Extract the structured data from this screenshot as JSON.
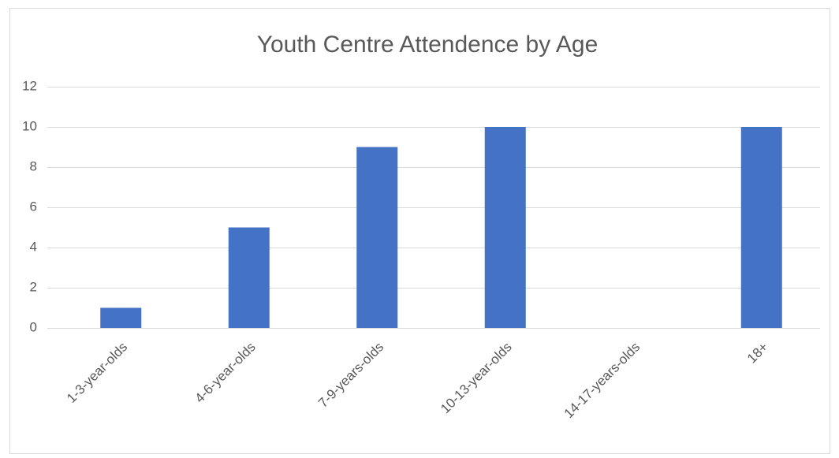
{
  "chart_data": {
    "type": "bar",
    "title": "Youth Centre Attendence by Age",
    "categories": [
      "1-3-year-olds",
      "4-6-year-olds",
      "7-9-years-olds",
      "10-13-year-olds",
      "14-17-years-olds",
      "18+"
    ],
    "values": [
      1,
      5,
      9,
      10,
      0,
      10
    ],
    "color": "#4472c4",
    "ylim": [
      0,
      12
    ],
    "yticks": [
      0,
      2,
      4,
      6,
      8,
      10,
      12
    ],
    "grid": true
  }
}
